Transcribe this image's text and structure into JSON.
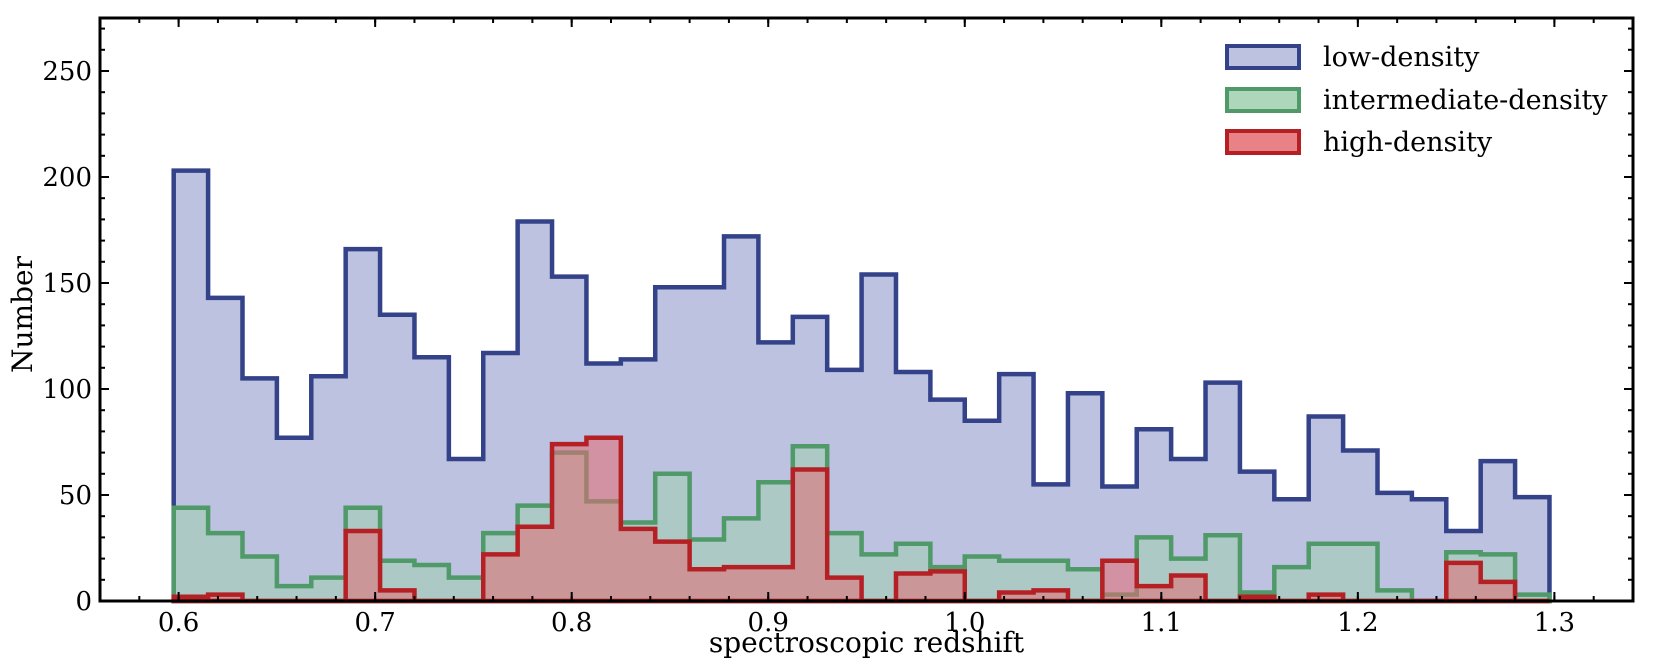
{
  "chart_data": {
    "type": "histogram",
    "title": "",
    "xlabel": "spectroscopic redshift",
    "ylabel": "Number",
    "xlim": [
      0.56,
      1.34
    ],
    "ylim": [
      0,
      275
    ],
    "xticks": [
      0.6,
      0.7,
      0.8,
      0.9,
      1.0,
      1.1,
      1.2,
      1.3
    ],
    "xtick_labels": [
      "0.6",
      "0.7",
      "0.8",
      "0.9",
      "1.0",
      "1.1",
      "1.2",
      "1.3"
    ],
    "yticks": [
      0,
      50,
      100,
      150,
      200,
      250
    ],
    "ytick_labels": [
      "0",
      "50",
      "100",
      "150",
      "200",
      "250"
    ],
    "legend_position": "top-right",
    "bin_start": 0.5975,
    "bin_width": 0.0175,
    "series": [
      {
        "name": "low-density",
        "edge_color": "#34428a",
        "fill_color": "#bcc2e0",
        "fill_opacity": 1,
        "values": [
          203,
          143,
          105,
          77,
          106,
          166,
          135,
          115,
          67,
          117,
          179,
          153,
          112,
          114,
          148,
          148,
          172,
          122,
          134,
          109,
          154,
          108,
          95,
          85,
          107,
          55,
          98,
          54,
          81,
          67,
          103,
          61,
          48,
          87,
          71,
          51,
          48,
          33,
          66,
          49
        ]
      },
      {
        "name": "intermediate-density",
        "edge_color": "#4f9a68",
        "fill_color": "#9fcfae",
        "fill_opacity": 0.55,
        "values": [
          44,
          32,
          21,
          7,
          11,
          44,
          19,
          17,
          11,
          32,
          45,
          70,
          47,
          37,
          60,
          29,
          39,
          56,
          73,
          32,
          22,
          27,
          16,
          21,
          19,
          19,
          15,
          3,
          30,
          20,
          31,
          4,
          16,
          27,
          27,
          5,
          0,
          23,
          22,
          3
        ]
      },
      {
        "name": "high-density",
        "edge_color": "#b52025",
        "fill_color": "#e46c72",
        "fill_opacity": 0.55,
        "values": [
          2,
          3,
          0,
          0,
          0,
          33,
          5,
          0,
          0,
          22,
          35,
          74,
          77,
          34,
          28,
          15,
          16,
          16,
          62,
          11,
          0,
          13,
          14,
          0,
          4,
          5,
          0,
          19,
          7,
          12,
          0,
          2,
          0,
          3,
          0,
          0,
          0,
          18,
          9,
          0
        ]
      }
    ]
  }
}
